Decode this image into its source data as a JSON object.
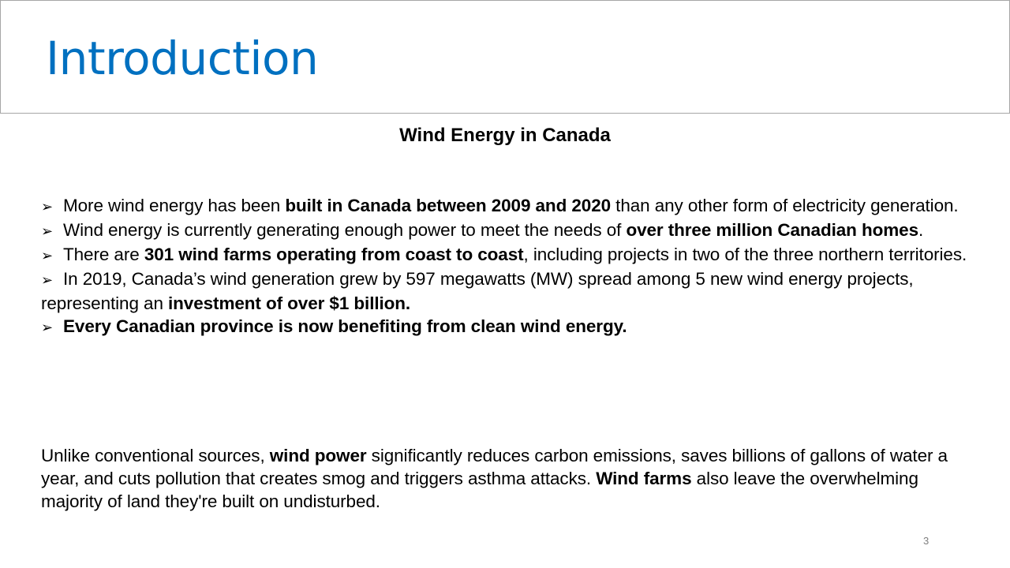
{
  "slide": {
    "title": "Introduction",
    "subtitle": "Wind Energy in Canada",
    "page_number": "3",
    "accent_color": "#0070c0",
    "bullet_symbol": "➢"
  },
  "bullets": [
    {
      "pre": "More wind energy has been ",
      "bold": "built in Canada between 2009 and 2020",
      "post": " than any other form of electricity generation."
    },
    {
      "pre": "Wind energy is currently generating enough power to meet the needs of ",
      "bold": "over three million Canadian homes",
      "post": "."
    },
    {
      "pre": "There are ",
      "bold": "301 wind farms operating from coast to coast",
      "post": ", including projects in two of the three northern territories."
    },
    {
      "pre": "In 2019, Canada’s wind generation grew by 597 megawatts (MW) spread among 5 new wind energy projects, representing an ",
      "bold": "investment of over $1 billion.",
      "post": ""
    },
    {
      "pre": "",
      "bold": "Every Canadian province is now benefiting from clean wind energy.",
      "post": ""
    }
  ],
  "paragraph": {
    "part1": "Unlike conventional sources, ",
    "bold1": "wind power",
    "part2": " significantly reduces carbon emissions, saves billions of gallons of water a year, and cuts pollution that creates smog and triggers asthma attacks. ",
    "bold2": "Wind farms",
    "part3": " also leave the overwhelming majority of land they're built on undisturbed."
  }
}
